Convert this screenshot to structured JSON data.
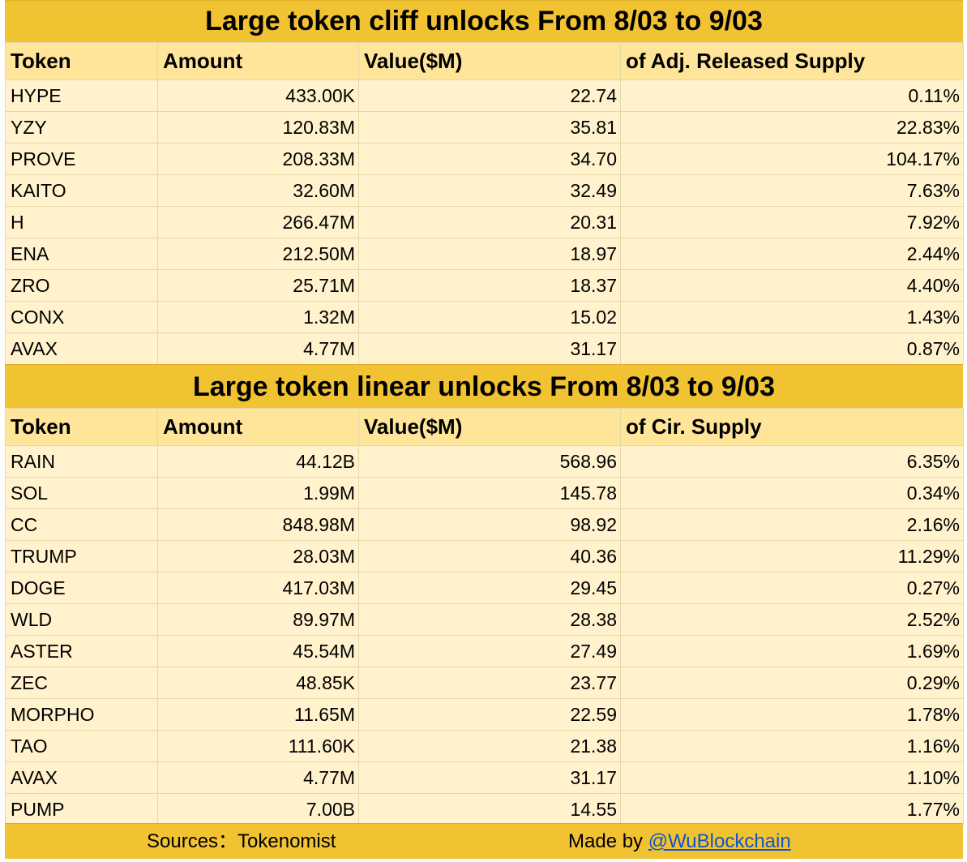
{
  "cliff": {
    "title": "Large token cliff unlocks From  8/03 to 9/03",
    "headers": [
      "Token",
      "Amount",
      "Value($M)",
      "of Adj. Released Supply"
    ],
    "rows": [
      [
        "HYPE",
        "433.00K",
        "22.74",
        "0.11%"
      ],
      [
        "YZY",
        "120.83M",
        "35.81",
        "22.83%"
      ],
      [
        "PROVE",
        "208.33M",
        "34.70",
        "104.17%"
      ],
      [
        "KAITO",
        "32.60M",
        "32.49",
        "7.63%"
      ],
      [
        "H",
        "266.47M",
        "20.31",
        "7.92%"
      ],
      [
        "ENA",
        "212.50M",
        "18.97",
        "2.44%"
      ],
      [
        "ZRO",
        "25.71M",
        "18.37",
        "4.40%"
      ],
      [
        "CONX",
        "1.32M",
        "15.02",
        "1.43%"
      ],
      [
        "AVAX",
        "4.77M",
        "31.17",
        "0.87%"
      ]
    ]
  },
  "linear": {
    "title": "Large token linear unlocks From  8/03 to 9/03",
    "headers": [
      "Token",
      "Amount",
      "Value($M)",
      "of Cir. Supply"
    ],
    "rows": [
      [
        "RAIN",
        "44.12B",
        "568.96",
        "6.35%"
      ],
      [
        "SOL",
        "1.99M",
        "145.78",
        "0.34%"
      ],
      [
        "CC",
        "848.98M",
        "98.92",
        "2.16%"
      ],
      [
        "TRUMP",
        "28.03M",
        "40.36",
        "11.29%"
      ],
      [
        "DOGE",
        "417.03M",
        "29.45",
        "0.27%"
      ],
      [
        "WLD",
        "89.97M",
        "28.38",
        "2.52%"
      ],
      [
        "ASTER",
        "45.54M",
        "27.49",
        "1.69%"
      ],
      [
        "ZEC",
        "48.85K",
        "23.77",
        "0.29%"
      ],
      [
        "MORPHO",
        "11.65M",
        "22.59",
        "1.78%"
      ],
      [
        "TAO",
        "111.60K",
        "21.38",
        "1.16%"
      ],
      [
        "AVAX",
        "4.77M",
        "31.17",
        "1.10%"
      ],
      [
        "PUMP",
        "7.00B",
        "14.55",
        "1.77%"
      ]
    ]
  },
  "footer": {
    "sources": "Sources：Tokenomist",
    "made_by": "Made by ",
    "handle": "@WuBlockchain"
  },
  "colors": {
    "title_bg": "#f1c232",
    "header_bg": "#ffe599",
    "row_bg": "#fff2cc",
    "link": "#1155cc"
  }
}
